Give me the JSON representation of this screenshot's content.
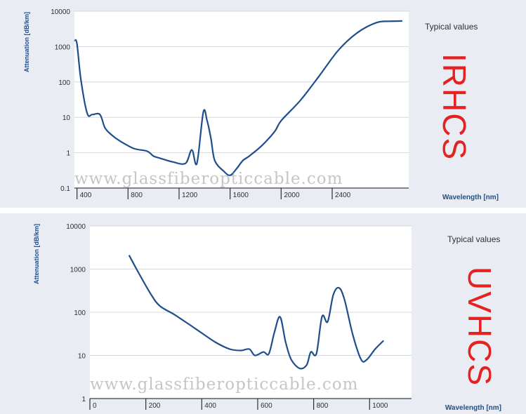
{
  "chart_data": [
    {
      "type": "line",
      "ylabel": "Attenuation [dB/km]",
      "xlabel": "Wavelength [nm]",
      "yscale": "log",
      "ylim": [
        0.1,
        10000
      ],
      "xlim": [
        380,
        3000
      ],
      "yticks": [
        "10000",
        "1000",
        "100",
        "10",
        "1",
        "0.1"
      ],
      "xticks": [
        "400",
        "800",
        "1200",
        "1600",
        "2000",
        "2400"
      ],
      "xtick_values": [
        400,
        800,
        1200,
        1600,
        2000,
        2400
      ],
      "legend_note": "Typical values",
      "side_label": "IRHCS",
      "grid": true,
      "line_color": "#1f4e8c",
      "series": [
        {
          "x": [
            380,
            400,
            430,
            480,
            520,
            580,
            620,
            680,
            750,
            850,
            950,
            1000,
            1050,
            1150,
            1250,
            1300,
            1340,
            1390,
            1420,
            1450,
            1480,
            1550,
            1600,
            1650,
            1700,
            1750,
            1850,
            1950,
            2000,
            2150,
            2300,
            2450,
            2600,
            2750,
            2850,
            2950
          ],
          "y": [
            1500,
            1200,
            120,
            13,
            12,
            12,
            5,
            3,
            2,
            1.3,
            1.1,
            0.8,
            0.7,
            0.55,
            0.5,
            1.2,
            0.5,
            14,
            8,
            2.5,
            0.6,
            0.3,
            0.23,
            0.35,
            0.6,
            0.8,
            1.6,
            4,
            8,
            30,
            150,
            800,
            2500,
            4800,
            5200,
            5300
          ]
        }
      ]
    },
    {
      "type": "line",
      "ylabel": "Attenuation [dB/km]",
      "xlabel": "Wavelength [nm]",
      "yscale": "log",
      "ylim": [
        1,
        10000
      ],
      "xlim": [
        0,
        1150
      ],
      "yticks": [
        "10000",
        "1000",
        "100",
        "10",
        "1"
      ],
      "xticks": [
        "0",
        "200",
        "400",
        "600",
        "800",
        "1000"
      ],
      "xtick_values": [
        0,
        200,
        400,
        600,
        800,
        1000
      ],
      "legend_note": "Typical values",
      "side_label": "UVHCS",
      "grid": true,
      "line_color": "#1f4e8c",
      "series": [
        {
          "x": [
            140,
            180,
            220,
            250,
            300,
            350,
            400,
            450,
            500,
            540,
            570,
            590,
            620,
            640,
            660,
            680,
            700,
            720,
            750,
            775,
            790,
            810,
            830,
            850,
            870,
            890,
            910,
            940,
            970,
            990,
            1020,
            1050
          ],
          "y": [
            2100,
            700,
            250,
            140,
            90,
            55,
            33,
            20,
            14,
            13,
            14,
            10,
            12,
            11,
            35,
            78,
            20,
            8,
            5,
            6,
            12,
            11,
            80,
            60,
            250,
            370,
            200,
            30,
            8,
            8,
            14,
            22
          ]
        }
      ]
    }
  ],
  "watermark": "www.glassfiberopticcable.com"
}
